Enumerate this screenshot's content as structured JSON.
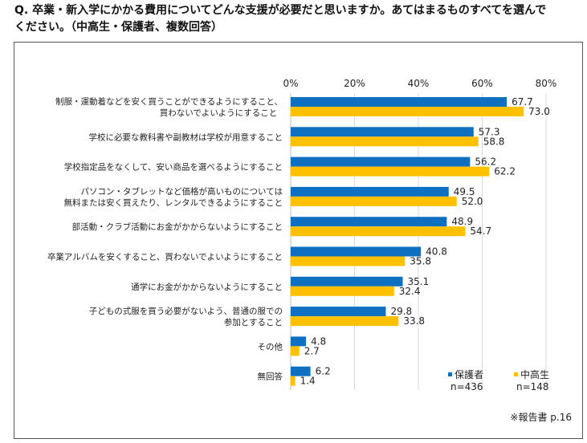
{
  "title_line1": "Q. 卒業・新入学にかかる費用についてどんな支援が必要だと思いますか。あてはまるものすべてを選んで",
  "title_line2": "ください。（中高生・保護者、複数回答）",
  "source": "※報告書 p.16",
  "chart_data": {
    "type": "bar",
    "orientation": "horizontal",
    "categories": [
      [
        "制服・運動着などを安く買うことができるようにすること、",
        "買わないでよいようにすること"
      ],
      [
        "学校に必要な教科書や副教材は学校が用意すること"
      ],
      [
        "学校指定品をなくして、安い商品を選べるようにすること"
      ],
      [
        "パソコン・タブレットなど価格が高いものについては",
        "無料または安く買えたり、レンタルできるようにすること"
      ],
      [
        "部活動・クラブ活動にお金がかからないようにすること"
      ],
      [
        "卒業アルバムを安くすること、買わないでよいようにすること"
      ],
      [
        "通学にお金がかからないようにすること"
      ],
      [
        "子どもの式服を買う必要がないよう、普通の服での",
        "参加とすること"
      ],
      [
        "その他"
      ],
      [
        "無回答"
      ]
    ],
    "series": [
      {
        "name": "保護者",
        "n": "n=436",
        "color": "#0F6FC0",
        "values": [
          67.7,
          57.3,
          56.2,
          49.5,
          48.9,
          40.8,
          35.1,
          29.8,
          4.8,
          6.2
        ]
      },
      {
        "name": "中高生",
        "n": "n=148",
        "color": "#FFC000",
        "values": [
          73.0,
          58.8,
          62.2,
          52.0,
          54.7,
          35.8,
          32.4,
          33.8,
          2.7,
          1.4
        ]
      }
    ],
    "xlim": [
      0,
      80
    ],
    "xticks": [
      "0%",
      "20%",
      "40%",
      "60%",
      "80%"
    ],
    "xtick_values": [
      0,
      20,
      40,
      60,
      80
    ],
    "grid": true,
    "legend_position": "bottom-right"
  }
}
